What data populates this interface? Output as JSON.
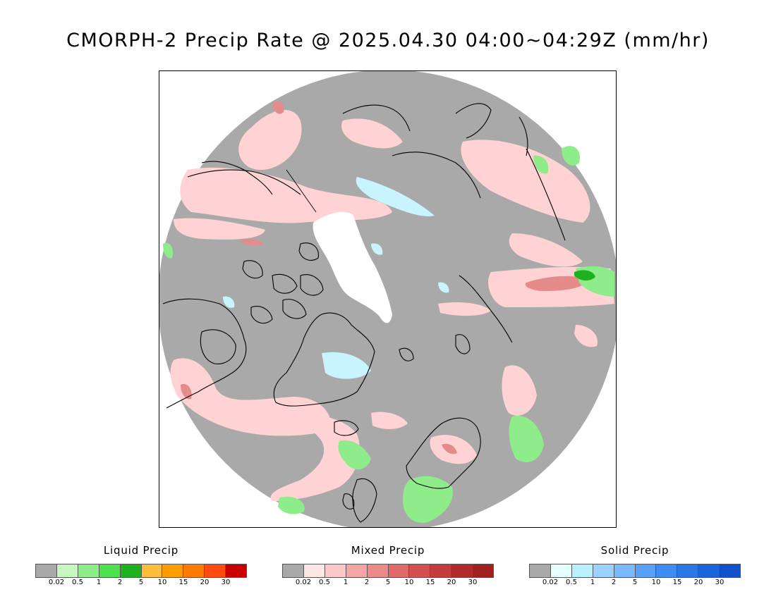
{
  "title": "CMORPH-2 Precip Rate @ 2025.04.30 04:00~04:29Z (mm/hr)",
  "map": {
    "projection": "polar-stereographic-north",
    "background_color": "#a9a9a9",
    "no_data_color": "#ffffff",
    "coastline_color": "#000000"
  },
  "legends": [
    {
      "title": "Liquid Precip",
      "ticks": [
        "0.02",
        "0.5",
        "1",
        "2",
        "5",
        "10",
        "15",
        "20",
        "30"
      ],
      "colors": [
        "#a9a9a9",
        "#c9f7c1",
        "#8fec8a",
        "#4fe050",
        "#1fb020",
        "#ffbd3d",
        "#ff9d00",
        "#ff7a00",
        "#ff4a10",
        "#c80000"
      ]
    },
    {
      "title": "Mixed Precip",
      "ticks": [
        "0.02",
        "0.5",
        "1",
        "2",
        "5",
        "10",
        "15",
        "20",
        "30"
      ],
      "colors": [
        "#a9a9a9",
        "#ffe6e6",
        "#ffc8c8",
        "#f4a6a6",
        "#ec8a8a",
        "#e06a6a",
        "#d45050",
        "#c43c3c",
        "#b02a2a",
        "#a02020"
      ]
    },
    {
      "title": "Solid Precip",
      "ticks": [
        "0.02",
        "0.5",
        "1",
        "2",
        "5",
        "10",
        "15",
        "20",
        "30"
      ],
      "colors": [
        "#a9a9a9",
        "#e6ffff",
        "#b8f0ff",
        "#9cd0ff",
        "#7ab8ff",
        "#5aa0f8",
        "#3f8cf0",
        "#2a78e6",
        "#1c64dc",
        "#1050c8"
      ]
    }
  ]
}
